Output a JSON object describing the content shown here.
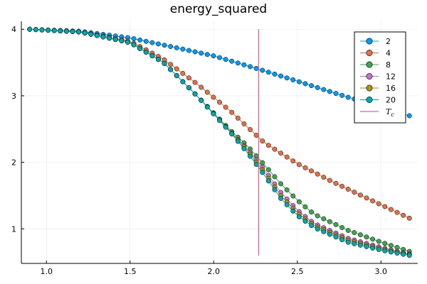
{
  "chart_data": {
    "type": "scatter",
    "title": "energy_squared",
    "xlabel": "",
    "ylabel": "",
    "xlim": [
      0.85,
      3.22
    ],
    "ylim": [
      0.48,
      4.12
    ],
    "xticks": [
      1.0,
      1.5,
      2.0,
      2.5,
      3.0
    ],
    "xtick_labels": [
      "1.0",
      "1.5",
      "2.0",
      "2.5",
      "3.0"
    ],
    "yticks": [
      1,
      2,
      3,
      4
    ],
    "ytick_labels": [
      "1",
      "2",
      "3",
      "4"
    ],
    "grid": true,
    "legend_position": "top-right",
    "x_range": {
      "start": 0.9,
      "end": 3.17,
      "points": 63
    },
    "series": [
      {
        "name": "2",
        "color": "#009AFA",
        "anchors": [
          [
            0.9,
            4.0
          ],
          [
            1.2,
            3.97
          ],
          [
            1.5,
            3.87
          ],
          [
            1.8,
            3.71
          ],
          [
            2.0,
            3.6
          ],
          [
            2.27,
            3.4
          ],
          [
            2.5,
            3.22
          ],
          [
            2.8,
            2.98
          ],
          [
            3.0,
            2.84
          ],
          [
            3.17,
            2.7
          ]
        ]
      },
      {
        "name": "4",
        "color": "#E26F46",
        "anchors": [
          [
            0.9,
            4.0
          ],
          [
            1.2,
            3.96
          ],
          [
            1.5,
            3.82
          ],
          [
            1.7,
            3.55
          ],
          [
            1.9,
            3.18
          ],
          [
            2.1,
            2.77
          ],
          [
            2.3,
            2.3
          ],
          [
            2.5,
            1.98
          ],
          [
            2.7,
            1.72
          ],
          [
            2.9,
            1.48
          ],
          [
            3.17,
            1.16
          ]
        ]
      },
      {
        "name": "8",
        "color": "#3EA44E",
        "anchors": [
          [
            0.9,
            4.0
          ],
          [
            1.2,
            3.96
          ],
          [
            1.5,
            3.8
          ],
          [
            1.7,
            3.5
          ],
          [
            1.9,
            3.0
          ],
          [
            2.1,
            2.48
          ],
          [
            2.2,
            2.25
          ],
          [
            2.3,
            1.97
          ],
          [
            2.4,
            1.68
          ],
          [
            2.5,
            1.43
          ],
          [
            2.6,
            1.22
          ],
          [
            2.8,
            0.98
          ],
          [
            3.0,
            0.8
          ],
          [
            3.17,
            0.66
          ]
        ]
      },
      {
        "name": "12",
        "color": "#C271D2",
        "anchors": [
          [
            0.9,
            4.0
          ],
          [
            1.2,
            3.96
          ],
          [
            1.5,
            3.8
          ],
          [
            1.7,
            3.5
          ],
          [
            1.9,
            3.0
          ],
          [
            2.1,
            2.46
          ],
          [
            2.2,
            2.2
          ],
          [
            2.3,
            1.9
          ],
          [
            2.4,
            1.55
          ],
          [
            2.5,
            1.28
          ],
          [
            2.6,
            1.08
          ],
          [
            2.8,
            0.86
          ],
          [
            3.0,
            0.72
          ],
          [
            3.17,
            0.62
          ]
        ]
      },
      {
        "name": "16",
        "color": "#AC8E18",
        "anchors": [
          [
            0.9,
            4.0
          ],
          [
            1.2,
            3.96
          ],
          [
            1.5,
            3.8
          ],
          [
            1.7,
            3.5
          ],
          [
            1.9,
            3.0
          ],
          [
            2.1,
            2.46
          ],
          [
            2.2,
            2.18
          ],
          [
            2.3,
            1.86
          ],
          [
            2.4,
            1.5
          ],
          [
            2.5,
            1.24
          ],
          [
            2.6,
            1.05
          ],
          [
            2.8,
            0.83
          ],
          [
            3.0,
            0.7
          ],
          [
            3.17,
            0.61
          ]
        ]
      },
      {
        "name": "20",
        "color": "#00A9AD",
        "anchors": [
          [
            0.9,
            4.0
          ],
          [
            1.2,
            3.96
          ],
          [
            1.5,
            3.8
          ],
          [
            1.7,
            3.5
          ],
          [
            1.9,
            3.0
          ],
          [
            2.1,
            2.45
          ],
          [
            2.2,
            2.15
          ],
          [
            2.3,
            1.82
          ],
          [
            2.4,
            1.46
          ],
          [
            2.5,
            1.2
          ],
          [
            2.6,
            1.02
          ],
          [
            2.8,
            0.8
          ],
          [
            3.0,
            0.68
          ],
          [
            3.17,
            0.6
          ]
        ]
      }
    ],
    "reference_line": {
      "name": "T_c",
      "x": 2.269,
      "y_range": [
        0.6,
        4.0
      ],
      "color": "#ED5D92"
    },
    "legend": {
      "tc_label": "T",
      "tc_subscript": "c"
    }
  }
}
